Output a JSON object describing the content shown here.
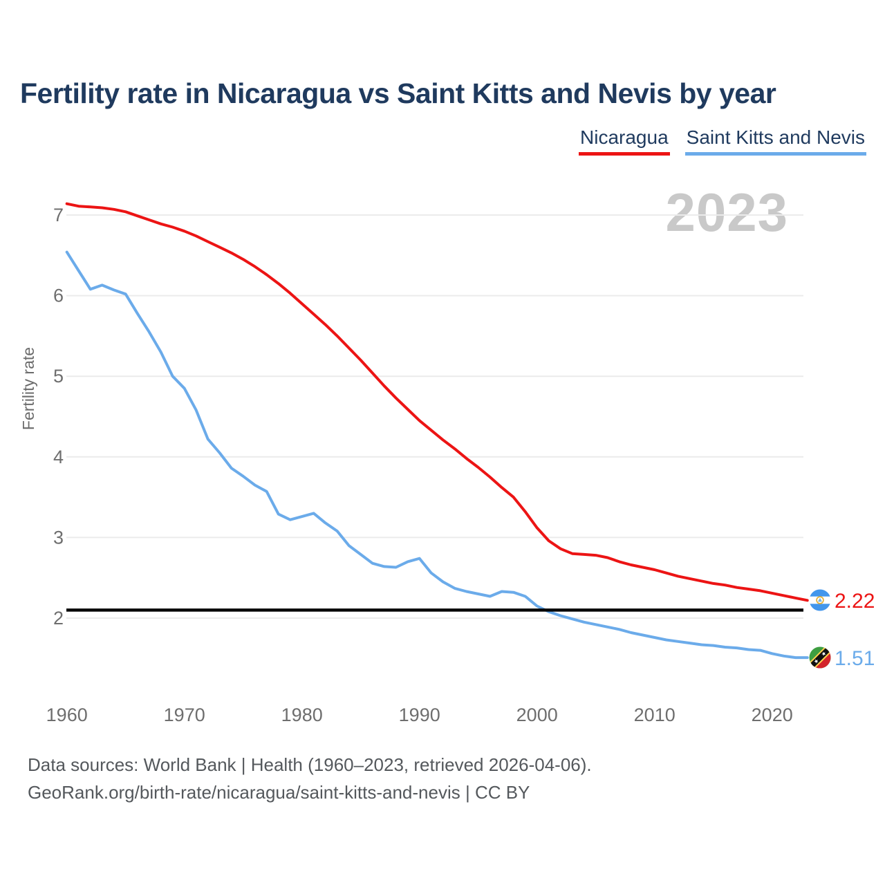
{
  "title": "Fertility rate in Nicaragua vs Saint Kitts and Nevis by year",
  "watermark": "2023",
  "legend": {
    "items": [
      {
        "label": "Nicaragua",
        "color": "#ec1414"
      },
      {
        "label": "Saint Kitts and Nevis",
        "color": "#6babea"
      }
    ],
    "position": "top-right"
  },
  "icons": [
    {
      "name": "nicaragua-flag-icon",
      "meaning": "flag of Nicaragua"
    },
    {
      "name": "saint-kitts-and-nevis-flag-icon",
      "meaning": "flag of Saint Kitts and Nevis"
    }
  ],
  "chart_data": {
    "type": "line",
    "title": "Fertility rate in Nicaragua vs Saint Kitts and Nevis by year",
    "xlabel": "",
    "ylabel": "Fertility rate",
    "x_ticks": [
      1960,
      1970,
      1980,
      1990,
      2000,
      2010,
      2020
    ],
    "y_ticks": [
      2,
      3,
      4,
      5,
      6,
      7
    ],
    "xlim": [
      1960,
      2023
    ],
    "ylim": [
      1.4,
      7.3
    ],
    "grid": true,
    "legend_position": "top-right",
    "reference_line": {
      "value": 2.1,
      "color": "#000000",
      "label": ""
    },
    "x": [
      1960,
      1961,
      1962,
      1963,
      1964,
      1965,
      1966,
      1967,
      1968,
      1969,
      1970,
      1971,
      1972,
      1973,
      1974,
      1975,
      1976,
      1977,
      1978,
      1979,
      1980,
      1981,
      1982,
      1983,
      1984,
      1985,
      1986,
      1987,
      1988,
      1989,
      1990,
      1991,
      1992,
      1993,
      1994,
      1995,
      1996,
      1997,
      1998,
      1999,
      2000,
      2001,
      2002,
      2003,
      2004,
      2005,
      2006,
      2007,
      2008,
      2009,
      2010,
      2011,
      2012,
      2013,
      2014,
      2015,
      2016,
      2017,
      2018,
      2019,
      2020,
      2021,
      2022,
      2023
    ],
    "series": [
      {
        "name": "Nicaragua",
        "color": "#ec1414",
        "end_label": "2.22",
        "end_value": 2.22,
        "values": [
          7.14,
          7.11,
          7.1,
          7.09,
          7.07,
          7.04,
          6.99,
          6.94,
          6.89,
          6.85,
          6.8,
          6.74,
          6.67,
          6.6,
          6.53,
          6.45,
          6.36,
          6.26,
          6.15,
          6.03,
          5.9,
          5.77,
          5.64,
          5.5,
          5.35,
          5.2,
          5.04,
          4.88,
          4.73,
          4.59,
          4.45,
          4.33,
          4.21,
          4.1,
          3.98,
          3.87,
          3.75,
          3.62,
          3.5,
          3.32,
          3.12,
          2.96,
          2.86,
          2.8,
          2.79,
          2.78,
          2.75,
          2.7,
          2.66,
          2.63,
          2.6,
          2.56,
          2.52,
          2.49,
          2.46,
          2.43,
          2.41,
          2.38,
          2.36,
          2.34,
          2.31,
          2.28,
          2.25,
          2.22
        ]
      },
      {
        "name": "Saint Kitts and Nevis",
        "color": "#6babea",
        "end_label": "1.51",
        "end_value": 1.51,
        "values": [
          6.54,
          6.31,
          6.08,
          6.13,
          6.07,
          6.02,
          5.78,
          5.55,
          5.3,
          5.0,
          4.85,
          4.58,
          4.22,
          4.05,
          3.86,
          3.76,
          3.65,
          3.57,
          3.29,
          3.22,
          3.26,
          3.3,
          3.18,
          3.08,
          2.9,
          2.79,
          2.68,
          2.64,
          2.63,
          2.7,
          2.74,
          2.56,
          2.45,
          2.37,
          2.33,
          2.3,
          2.27,
          2.33,
          2.32,
          2.27,
          2.15,
          2.08,
          2.03,
          1.99,
          1.95,
          1.92,
          1.89,
          1.86,
          1.82,
          1.79,
          1.76,
          1.73,
          1.71,
          1.69,
          1.67,
          1.66,
          1.64,
          1.63,
          1.61,
          1.6,
          1.56,
          1.53,
          1.51,
          1.51
        ]
      }
    ]
  },
  "footer": {
    "line1": "Data sources: World Bank | Health (1960–2023, retrieved 2026-04-06).",
    "line2": "GeoRank.org/birth-rate/nicaragua/saint-kitts-and-nevis | CC BY"
  }
}
